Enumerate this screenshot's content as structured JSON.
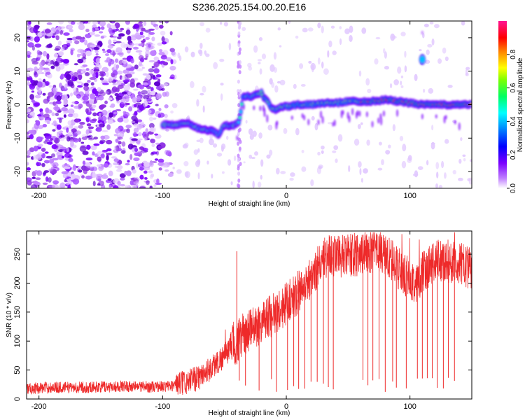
{
  "title": "S236.2025.154.00.20.E16",
  "chart_data": [
    {
      "type": "heatmap",
      "xlabel": "Height of straight line (km)",
      "ylabel": "Frequency (Hz)",
      "xlim": [
        -210,
        150
      ],
      "ylim": [
        -25,
        25
      ],
      "xticks": [
        -200,
        -100,
        0,
        100
      ],
      "yticks": [
        -20,
        -10,
        0,
        10,
        20
      ],
      "colorbar": {
        "label": "Normalized spectral amplitude",
        "range": [
          0,
          1
        ],
        "ticks": [
          0.0,
          0.2,
          0.4,
          0.6,
          0.8
        ],
        "colors": [
          "#ffffff",
          "#7b00ff",
          "#0000ff",
          "#00ffff",
          "#00ff00",
          "#ffff00",
          "#ff8000",
          "#ff0000",
          "#ff1493"
        ]
      },
      "track": [
        [
          -100,
          -6
        ],
        [
          -90,
          -6
        ],
        [
          -80,
          -5.5
        ],
        [
          -72,
          -7
        ],
        [
          -65,
          -7.5
        ],
        [
          -58,
          -8
        ],
        [
          -55,
          -9
        ],
        [
          -50,
          -6
        ],
        [
          -45,
          -6.5
        ],
        [
          -42,
          -6
        ],
        [
          -38,
          -5
        ],
        [
          -35,
          2.5
        ],
        [
          -28,
          2.5
        ],
        [
          -24,
          3
        ],
        [
          -20,
          3.5
        ],
        [
          -18,
          2
        ],
        [
          -15,
          1
        ],
        [
          -12,
          -1
        ],
        [
          -8,
          -1.5
        ],
        [
          -3,
          -0.5
        ],
        [
          3,
          -0.5
        ],
        [
          10,
          0
        ],
        [
          20,
          0
        ],
        [
          30,
          0.5
        ],
        [
          40,
          0.5
        ],
        [
          50,
          1
        ],
        [
          60,
          1
        ],
        [
          70,
          1
        ],
        [
          80,
          1.5
        ],
        [
          90,
          1
        ],
        [
          100,
          0.5
        ],
        [
          110,
          0
        ],
        [
          120,
          0
        ],
        [
          130,
          0
        ],
        [
          140,
          0
        ],
        [
          150,
          0
        ]
      ],
      "blob": [
        110,
        13.5
      ]
    },
    {
      "type": "line",
      "xlabel": "Height of straight line (km)",
      "ylabel": "SNR (10 * v/v)",
      "xlim": [
        -210,
        150
      ],
      "ylim": [
        0,
        290
      ],
      "xticks": [
        -200,
        -100,
        0,
        100
      ],
      "yticks": [
        0,
        50,
        100,
        150,
        200,
        250
      ],
      "color": "#ee2a2a",
      "series": [
        {
          "values": [
            [
              -210,
              18
            ],
            [
              -190,
              20
            ],
            [
              -170,
              20
            ],
            [
              -150,
              21
            ],
            [
              -130,
              22
            ],
            [
              -110,
              21
            ],
            [
              -95,
              22
            ],
            [
              -80,
              28
            ],
            [
              -70,
              38
            ],
            [
              -60,
              55
            ],
            [
              -50,
              75
            ],
            [
              -42,
              95
            ],
            [
              -35,
              110
            ],
            [
              -25,
              125
            ],
            [
              -15,
              140
            ],
            [
              -5,
              155
            ],
            [
              5,
              175
            ],
            [
              15,
              195
            ],
            [
              22,
              215
            ],
            [
              30,
              245
            ],
            [
              38,
              250
            ],
            [
              45,
              245
            ],
            [
              55,
              248
            ],
            [
              65,
              255
            ],
            [
              75,
              255
            ],
            [
              85,
              240
            ],
            [
              95,
              215
            ],
            [
              102,
              200
            ],
            [
              108,
              210
            ],
            [
              115,
              230
            ],
            [
              125,
              240
            ],
            [
              135,
              235
            ],
            [
              145,
              230
            ],
            [
              150,
              225
            ]
          ]
        }
      ],
      "dropouts": [
        -38,
        -33,
        -22,
        -12,
        -8,
        1,
        6,
        10,
        15,
        20,
        25,
        30,
        34,
        38,
        62,
        66,
        70,
        75,
        80,
        86,
        89,
        97,
        106,
        110,
        114,
        118,
        122,
        127,
        131,
        136
      ]
    }
  ]
}
